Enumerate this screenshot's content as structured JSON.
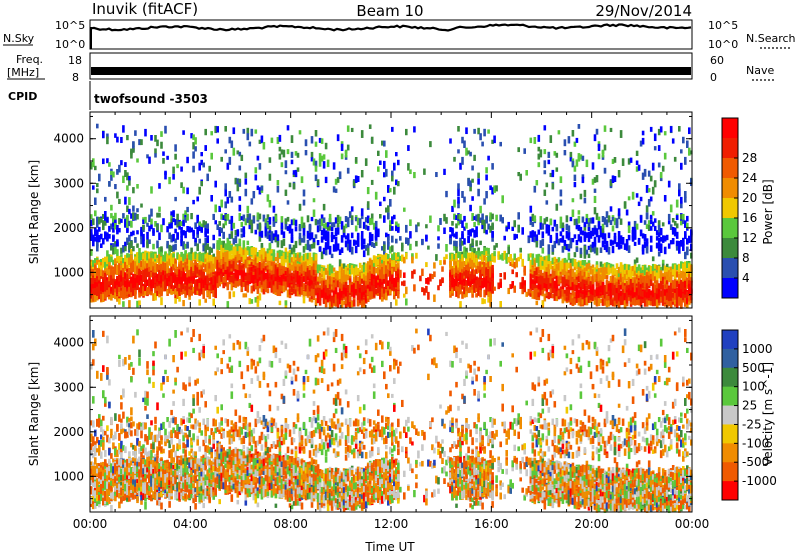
{
  "header": {
    "station": "Inuvik (fitACF)",
    "beam": "Beam 10",
    "date": "29/Nov/2014"
  },
  "noise_panel": {
    "left_label": "N.Sky",
    "left_ticks": [
      "10^5",
      "10^0"
    ],
    "right_label": "N.Search",
    "right_ticks": [
      "10^5",
      "10^0"
    ]
  },
  "freq_panel": {
    "left_label_1": "Freq.",
    "left_label_2": "[MHz]",
    "left_ticks": [
      "18",
      "8"
    ],
    "right_label": "Nave",
    "right_ticks": [
      "60",
      "0"
    ]
  },
  "cpid": {
    "label": "CPID",
    "value": "twofsound -3503"
  },
  "colors": {
    "power_scale": [
      "#0000ff",
      "#2a4fb0",
      "#3c8a3c",
      "#5ac83c",
      "#f0c800",
      "#f08c00",
      "#f05a00",
      "#f01e00",
      "#ff0000"
    ],
    "velocity_scale": [
      "#2040c0",
      "#3060a0",
      "#3c8a3c",
      "#5ac83c",
      "#c8c8c8",
      "#f0c800",
      "#f08c00",
      "#f05a00",
      "#ff0000"
    ]
  },
  "chart_data": [
    {
      "type": "heatmap",
      "name": "power-panel",
      "ylabel": "Slant Range [km]",
      "yticks": [
        1000,
        2000,
        3000,
        4000
      ],
      "ylim": [
        200,
        4600
      ],
      "colorbar_label": "Power [dB]",
      "colorbar_ticks": [
        "4",
        "8",
        "12",
        "16",
        "20",
        "24",
        "28"
      ],
      "colorbar_range": [
        0,
        32
      ]
    },
    {
      "type": "heatmap",
      "name": "velocity-panel",
      "ylabel": "Slant Range [km]",
      "yticks": [
        1000,
        2000,
        3000,
        4000
      ],
      "ylim": [
        200,
        4600
      ],
      "xlabel": "Time UT",
      "xticks": [
        "00:00",
        "04:00",
        "08:00",
        "12:00",
        "16:00",
        "20:00",
        "00:00"
      ],
      "colorbar_label": "Velocity [m s^-1]",
      "colorbar_ticks": [
        "1000",
        "500",
        "100",
        "25",
        "-25",
        "-100",
        "-500",
        "-1000"
      ]
    }
  ]
}
